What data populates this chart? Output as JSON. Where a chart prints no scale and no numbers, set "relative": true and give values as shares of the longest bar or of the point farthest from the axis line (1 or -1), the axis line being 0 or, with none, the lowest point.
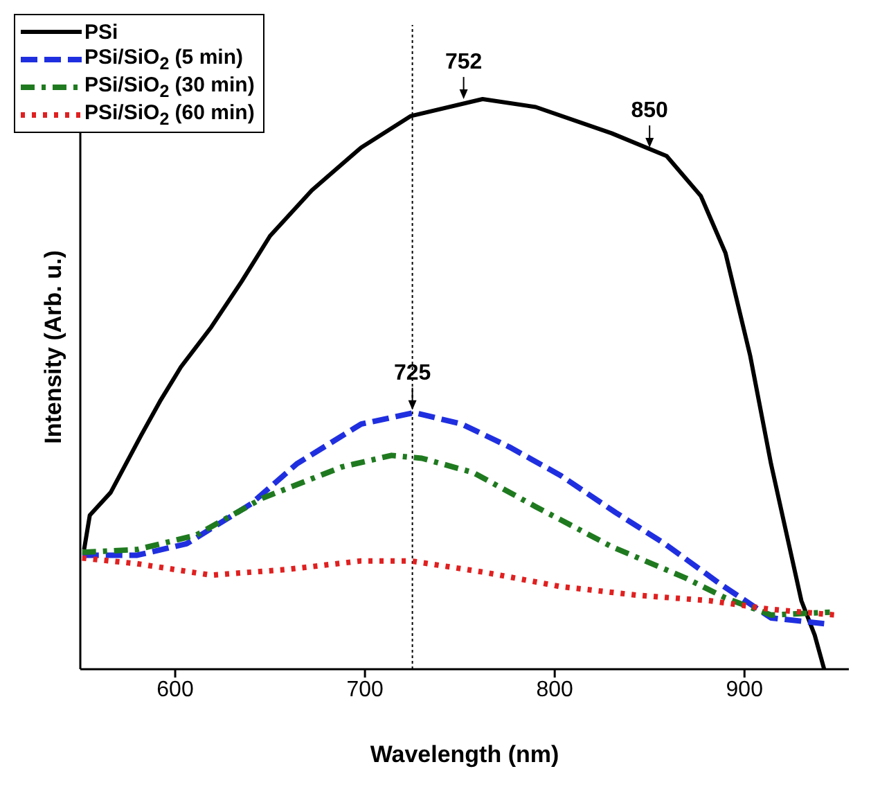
{
  "chart_data": {
    "type": "line",
    "relative": true,
    "xlabel": "Wavelength (nm)",
    "ylabel": "Intensity (Arb. u.)",
    "xlim": [
      550,
      955
    ],
    "xticks": [
      600,
      700,
      800,
      900
    ],
    "legend": "top left",
    "marker": "none",
    "series": [
      {
        "name": "PSi",
        "color": "#000000",
        "line_style": "solid",
        "x": [
          552,
          555,
          566,
          582,
          592,
          603,
          619,
          635,
          650,
          672,
          698,
          724,
          762,
          790,
          830,
          859,
          877,
          890,
          903,
          914,
          924,
          930,
          937,
          942
        ],
        "values": [
          0.21,
          0.27,
          0.31,
          0.41,
          0.47,
          0.53,
          0.6,
          0.68,
          0.76,
          0.84,
          0.915,
          0.97,
          1,
          0.986,
          0.94,
          0.9,
          0.83,
          0.73,
          0.55,
          0.36,
          0.21,
          0.12,
          0.06,
          0
        ]
      },
      {
        "name": "PSi/SiO$_{2}$ (5 min)",
        "color": "#1f2fe0",
        "line_style": "dashed",
        "x": [
          551,
          580,
          606,
          640,
          664,
          698,
          726,
          751,
          776,
          803,
          832,
          858,
          887,
          914,
          942
        ],
        "values": [
          0.2,
          0.2,
          0.22,
          0.29,
          0.36,
          0.43,
          0.45,
          0.43,
          0.39,
          0.34,
          0.275,
          0.22,
          0.15,
          0.09,
          0.08
        ]
      },
      {
        "name": "PSi/SiO$_{2}$ (30 min)",
        "color": "#1f7a1f",
        "line_style": "dashdot",
        "x": [
          551,
          580,
          611,
          646,
          688,
          714,
          730,
          757,
          790,
          830,
          869,
          890,
          914,
          945
        ],
        "values": [
          0.205,
          0.21,
          0.235,
          0.3,
          0.355,
          0.375,
          0.37,
          0.345,
          0.285,
          0.215,
          0.16,
          0.125,
          0.095,
          0.1
        ]
      },
      {
        "name": "PSi/SiO$_{2}$ (60 min)",
        "color": "#e02020",
        "line_style": "dotted",
        "x": [
          551,
          580,
          619,
          659,
          698,
          724,
          763,
          803,
          843,
          882,
          914,
          948
        ],
        "values": [
          0.195,
          0.185,
          0.165,
          0.175,
          0.19,
          0.19,
          0.17,
          0.145,
          0.13,
          0.12,
          0.105,
          0.095
        ]
      }
    ],
    "ref_lines": [
      {
        "axis": "x",
        "value": 725,
        "line_style": "dotted",
        "color": "#000000"
      }
    ],
    "annotations": [
      {
        "text": "752",
        "x": 752,
        "y": 0.995
      },
      {
        "text": "850",
        "x": 850,
        "y": 0.91
      },
      {
        "text": "725",
        "x": 725,
        "y": 0.45
      }
    ]
  }
}
